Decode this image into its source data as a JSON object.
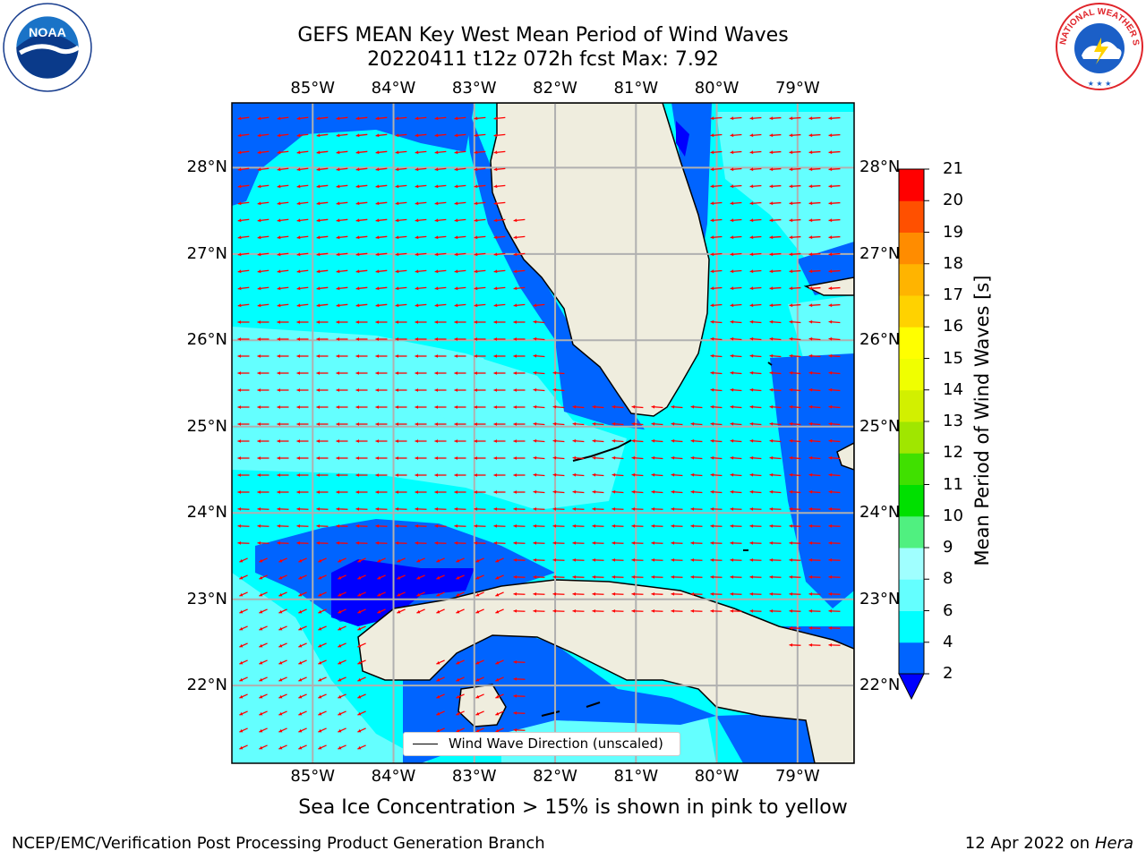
{
  "title_line1": "GEFS MEAN Key West Mean Period of Wind Waves",
  "title_line2": "20220411 t12z 072h fcst   Max: 7.92",
  "logos": {
    "left": {
      "icon": "noaa-logo",
      "text": "NOAA"
    },
    "right": {
      "icon": "nws-logo",
      "text": "NATIONAL WEATHER SERVICE"
    }
  },
  "map": {
    "lon_labels": [
      "85°W",
      "84°W",
      "83°W",
      "82°W",
      "81°W",
      "80°W",
      "79°W"
    ],
    "lat_labels": [
      "28°N",
      "27°N",
      "26°N",
      "25°N",
      "24°N",
      "23°N",
      "22°N"
    ],
    "lon_values": [
      -85,
      -84,
      -83,
      -82,
      -81,
      -80,
      -79
    ],
    "lat_values": [
      28,
      27,
      26,
      25,
      24,
      23,
      22
    ],
    "extent": {
      "lon_min": -86,
      "lon_max": -78.3,
      "lat_min": 21.1,
      "lat_max": 28.75
    },
    "colors": {
      "land": "#efedde",
      "coast": "#000000",
      "grid": "#b0b0b0",
      "arrow": "#ff0000"
    }
  },
  "legend": {
    "label": "Wind Wave Direction (unscaled)"
  },
  "colorbar": {
    "label": "Mean Period of Wind Waves [s]",
    "ticks": [
      "21",
      "20",
      "19",
      "18",
      "17",
      "16",
      "15",
      "14",
      "13",
      "12",
      "11",
      "10",
      "9",
      "8",
      "6",
      "4",
      "2"
    ],
    "levels": [
      2,
      4,
      6,
      8,
      9,
      10,
      11,
      12,
      13,
      14,
      15,
      16,
      17,
      18,
      19,
      20,
      21
    ],
    "colors": [
      "#0064ff",
      "#00ffff",
      "#64ffff",
      "#a0ffff",
      "#50f080",
      "#00e000",
      "#40e000",
      "#a0e600",
      "#d2f000",
      "#f0ff00",
      "#ffff00",
      "#ffd200",
      "#ffb400",
      "#ff8c00",
      "#ff5000",
      "#ff0000"
    ],
    "under_color": "#0000ff"
  },
  "ice_note": "Sea Ice Concentration > 15% is shown in pink to yellow",
  "footer": {
    "left": "NCEP/EMC/Verification Post Processing Product Generation Branch",
    "date": "12 Apr 2022 on ",
    "host": "Hera"
  }
}
